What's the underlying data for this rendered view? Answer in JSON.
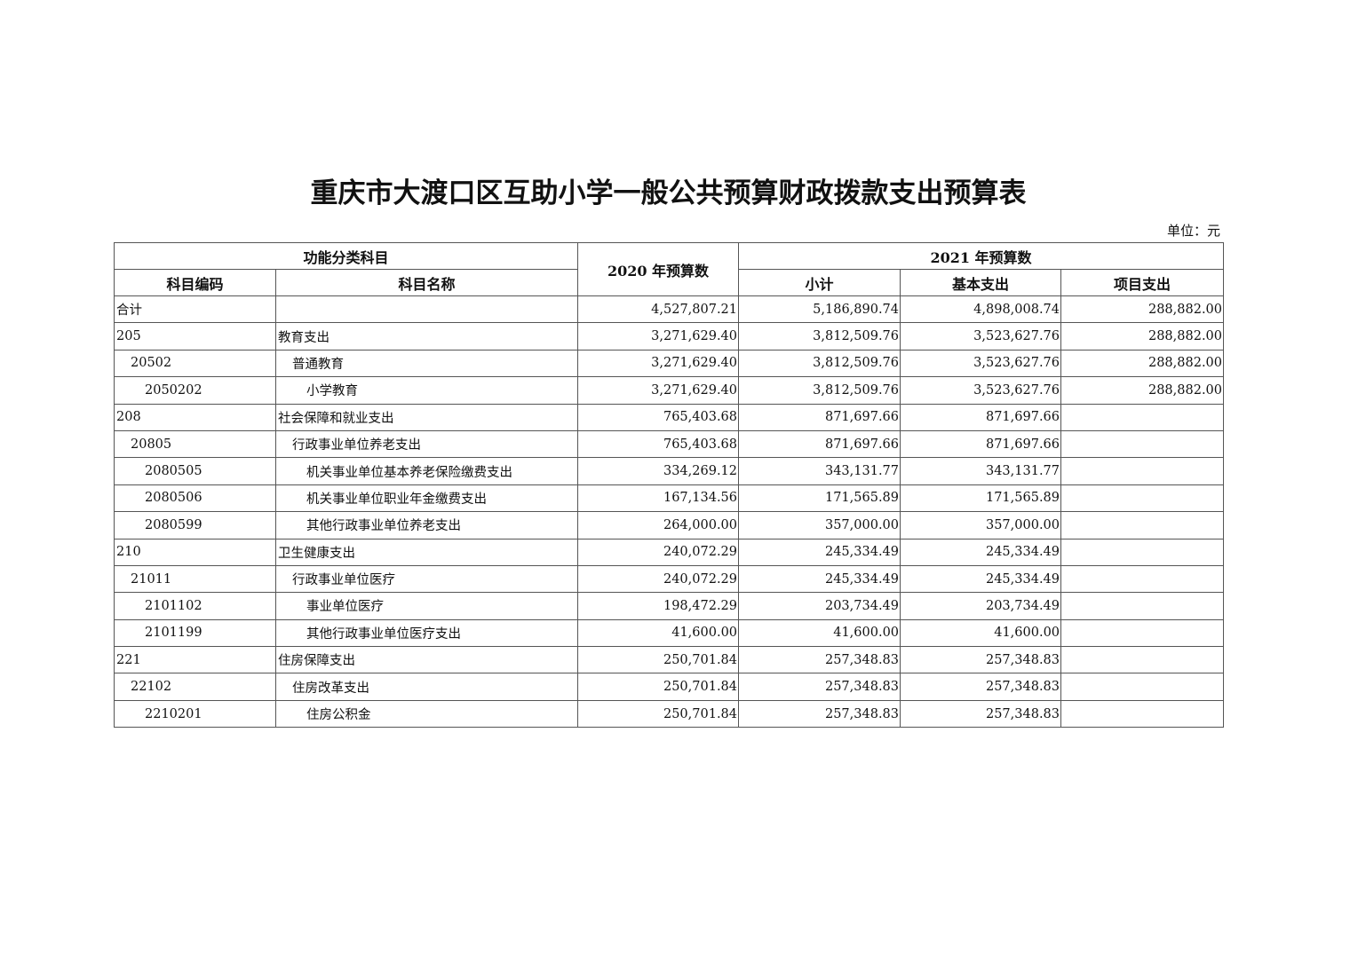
{
  "document": {
    "title": "重庆市大渡口区互助小学一般公共预算财政拨款支出预算表",
    "unit": "单位：元"
  },
  "table": {
    "headers": {
      "group_function": "功能分类科目",
      "year_2020": "2020 年预算数",
      "group_2021": "2021 年预算数",
      "code": "科目编码",
      "name": "科目名称",
      "subtotal": "小计",
      "basic": "基本支出",
      "project": "项目支出"
    },
    "rows": [
      {
        "level": 1,
        "code": "合计",
        "name": "",
        "y2020": "4,527,807.21",
        "subtotal": "5,186,890.74",
        "basic": "4,898,008.74",
        "project": "288,882.00"
      },
      {
        "level": 1,
        "code": "205",
        "name": "教育支出",
        "y2020": "3,271,629.40",
        "subtotal": "3,812,509.76",
        "basic": "3,523,627.76",
        "project": "288,882.00"
      },
      {
        "level": 2,
        "code": "20502",
        "name": "普通教育",
        "y2020": "3,271,629.40",
        "subtotal": "3,812,509.76",
        "basic": "3,523,627.76",
        "project": "288,882.00"
      },
      {
        "level": 3,
        "code": "2050202",
        "name": "小学教育",
        "y2020": "3,271,629.40",
        "subtotal": "3,812,509.76",
        "basic": "3,523,627.76",
        "project": "288,882.00"
      },
      {
        "level": 1,
        "code": "208",
        "name": "社会保障和就业支出",
        "y2020": "765,403.68",
        "subtotal": "871,697.66",
        "basic": "871,697.66",
        "project": ""
      },
      {
        "level": 2,
        "code": "20805",
        "name": "行政事业单位养老支出",
        "y2020": "765,403.68",
        "subtotal": "871,697.66",
        "basic": "871,697.66",
        "project": ""
      },
      {
        "level": 3,
        "code": "2080505",
        "name": "机关事业单位基本养老保险缴费支出",
        "y2020": "334,269.12",
        "subtotal": "343,131.77",
        "basic": "343,131.77",
        "project": ""
      },
      {
        "level": 3,
        "code": "2080506",
        "name": "机关事业单位职业年金缴费支出",
        "y2020": "167,134.56",
        "subtotal": "171,565.89",
        "basic": "171,565.89",
        "project": ""
      },
      {
        "level": 3,
        "code": "2080599",
        "name": "其他行政事业单位养老支出",
        "y2020": "264,000.00",
        "subtotal": "357,000.00",
        "basic": "357,000.00",
        "project": ""
      },
      {
        "level": 1,
        "code": "210",
        "name": "卫生健康支出",
        "y2020": "240,072.29",
        "subtotal": "245,334.49",
        "basic": "245,334.49",
        "project": ""
      },
      {
        "level": 2,
        "code": "21011",
        "name": "行政事业单位医疗",
        "y2020": "240,072.29",
        "subtotal": "245,334.49",
        "basic": "245,334.49",
        "project": ""
      },
      {
        "level": 3,
        "code": "2101102",
        "name": "事业单位医疗",
        "y2020": "198,472.29",
        "subtotal": "203,734.49",
        "basic": "203,734.49",
        "project": ""
      },
      {
        "level": 3,
        "code": "2101199",
        "name": "其他行政事业单位医疗支出",
        "y2020": "41,600.00",
        "subtotal": "41,600.00",
        "basic": "41,600.00",
        "project": ""
      },
      {
        "level": 1,
        "code": "221",
        "name": "住房保障支出",
        "y2020": "250,701.84",
        "subtotal": "257,348.83",
        "basic": "257,348.83",
        "project": ""
      },
      {
        "level": 2,
        "code": "22102",
        "name": "住房改革支出",
        "y2020": "250,701.84",
        "subtotal": "257,348.83",
        "basic": "257,348.83",
        "project": ""
      },
      {
        "level": 3,
        "code": "2210201",
        "name": "住房公积金",
        "y2020": "250,701.84",
        "subtotal": "257,348.83",
        "basic": "257,348.83",
        "project": ""
      }
    ]
  }
}
